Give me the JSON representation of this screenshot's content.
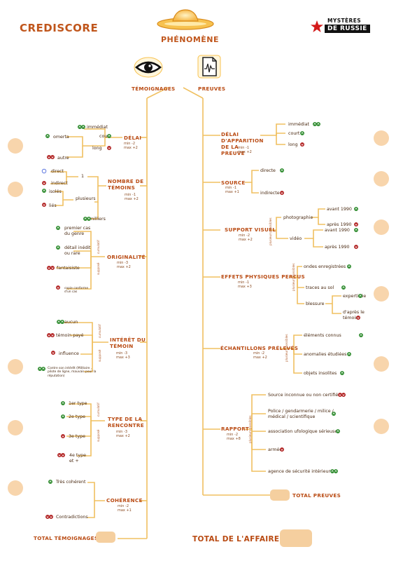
{
  "brand": {
    "left": "CREDISCORE",
    "right_top": "MYSTÈRES",
    "right_bottom": "DE RUSSIE"
  },
  "center": {
    "title": "PHÉNOMÈNE"
  },
  "columns": {
    "left": "TÉMOIGNAGES",
    "right": "PREUVES"
  },
  "left": {
    "delai": {
      "title": "DÉLAI",
      "min": "min -2",
      "max": "max +2",
      "court": "court",
      "long": "long",
      "immediat": "immédiat",
      "omerta": "omerta",
      "autre": "autre"
    },
    "nombre": {
      "title": "NOMBRE DE TÉMOINS",
      "min": "min -1",
      "max": "max +2",
      "one": "1",
      "plusieurs": "plusieurs",
      "milliers": "milliers",
      "direct": "direct",
      "indirect": "indirect",
      "isoles": "isolés",
      "lies": "liés"
    },
    "originalite": {
      "title": "ORIGINALITÉ",
      "min": "min -3",
      "max": "max +2",
      "vlabel": "cumulatif",
      "vlabel2": "supposé",
      "premier": "premier cas du genre",
      "detail": "détail inédit ou rare",
      "fantaisiste": "fantaisiste",
      "copie": "copie conforme d'un cas"
    },
    "interet": {
      "title": "INTÉRÊT DU TÉMOIN",
      "min": "min -3",
      "max": "max +3",
      "vlabel": "cumulatif",
      "vlabel2": "supposé",
      "aucun": "aucun",
      "paye": "témoin payé",
      "influence": "influence",
      "contre": "Contre son intérêt (Militaire , pilote de ligne, mauvais pour la réputation)"
    },
    "type": {
      "title": "TYPE DE LA RENCONTRE",
      "min": "min -3",
      "max": "max +2",
      "vlabel": "cumulatif",
      "vlabel2": "supposé",
      "t1": "1er type",
      "t2": "2e type",
      "t3": "3e type",
      "t4": "4e type et +"
    },
    "coherence": {
      "title": "COHÉRENCE",
      "min": "min -2",
      "max": "max +1",
      "tres": "Très cohérent",
      "contra": "Contradictions"
    },
    "total": "TOTAL TÉMOIGNAGES"
  },
  "right": {
    "delai": {
      "title": "DÉLAI D'APPARITION DE LA PREUVE",
      "min": "min -1",
      "max": "max +2",
      "immediat": "immédiat",
      "court": "court",
      "long": "long"
    },
    "source": {
      "title": "SOURCE",
      "min": "min -1",
      "max": "max +1",
      "directe": "directe",
      "indirecte": "indirecte"
    },
    "support": {
      "title": "SUPPORT VISUEL",
      "min": "min -2",
      "max": "max +2",
      "vlabel": "plusieurs possibles",
      "photo": "photographie",
      "video": "vidéo",
      "avant1": "avant 1990",
      "apres1": "après 1990",
      "avant2": "avant 1990",
      "apres2": "après 1990"
    },
    "effets": {
      "title": "EFFETS PHYSIQUES PERCUS",
      "min": "min -1",
      "max": "max +3",
      "vlabel": "plusieurs possibles",
      "ondes": "ondes enregistrées",
      "traces": "traces au sol",
      "blessure": "blessure",
      "expertisee": "expertisée",
      "apres_temoin": "d'après le témoin"
    },
    "echantillons": {
      "title": "ÉCHANTILLONS PRÉLEVÉS",
      "min": "min -2",
      "max": "max +2",
      "vlabel": "plusieurs possibles",
      "connus": "éléments connus",
      "anomalies": "anomalies étudiées",
      "insolites": "objets insolites"
    },
    "rapport": {
      "title": "RAPPORT",
      "min": "min -2",
      "max": "max +8",
      "vlabel": "plusieurs possibles",
      "source_inc": "Source inconnue ou non certifiée",
      "police": "Police / gendarmerie / milice / médical / scientifique",
      "assoc": "association ufologique sérieuse",
      "armee": "armée",
      "agence": "agence de sécurité intérieure"
    },
    "total": "TOTAL PREUVES"
  },
  "total_affaire": "TOTAL DE L'AFFAIRE",
  "colors": {
    "accent": "#c0561c",
    "line": "#f0c060",
    "hole": "#f8d5ac",
    "green": "#2e8b2e",
    "red": "#b02020"
  }
}
